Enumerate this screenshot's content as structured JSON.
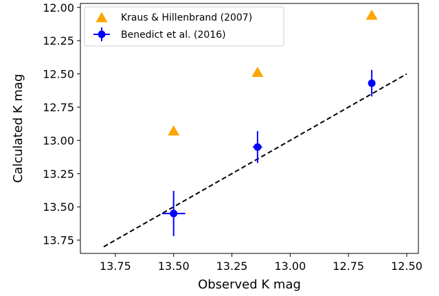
{
  "chart_data": {
    "type": "scatter",
    "title": "",
    "xlabel": "Observed K mag",
    "ylabel": "Calculated K mag",
    "xlim": [
      13.9,
      12.45
    ],
    "ylim": [
      13.85,
      11.97
    ],
    "x_inverted": true,
    "y_inverted": true,
    "xticks": [
      13.75,
      13.5,
      13.25,
      13.0,
      12.75,
      12.5
    ],
    "xtick_labels": [
      "13.75",
      "13.50",
      "13.25",
      "13.00",
      "12.75",
      "12.50"
    ],
    "yticks": [
      12.0,
      12.25,
      12.5,
      12.75,
      13.0,
      13.25,
      13.5,
      13.75
    ],
    "ytick_labels": [
      "12.00",
      "12.25",
      "12.50",
      "12.75",
      "13.00",
      "13.25",
      "13.50",
      "13.75"
    ],
    "grid": false,
    "legend_position": "top-left",
    "series": [
      {
        "name": "Kraus & Hillenbrand (2007)",
        "marker": "triangle",
        "color": "#ffa500",
        "x": [
          13.5,
          13.14,
          12.65
        ],
        "y": [
          12.93,
          12.49,
          12.06
        ]
      },
      {
        "name": "Benedict et al. (2016)",
        "marker": "circle",
        "color": "#0000ff",
        "x": [
          13.5,
          13.14,
          12.65
        ],
        "y": [
          13.55,
          13.05,
          12.57
        ],
        "xerr": [
          0.05,
          0.02,
          0.01
        ],
        "yerr": [
          0.17,
          0.12,
          0.1
        ]
      }
    ],
    "reference_line": {
      "style": "dashed",
      "color": "#000000",
      "x": [
        13.8,
        12.5
      ],
      "y": [
        13.8,
        12.5
      ]
    }
  }
}
